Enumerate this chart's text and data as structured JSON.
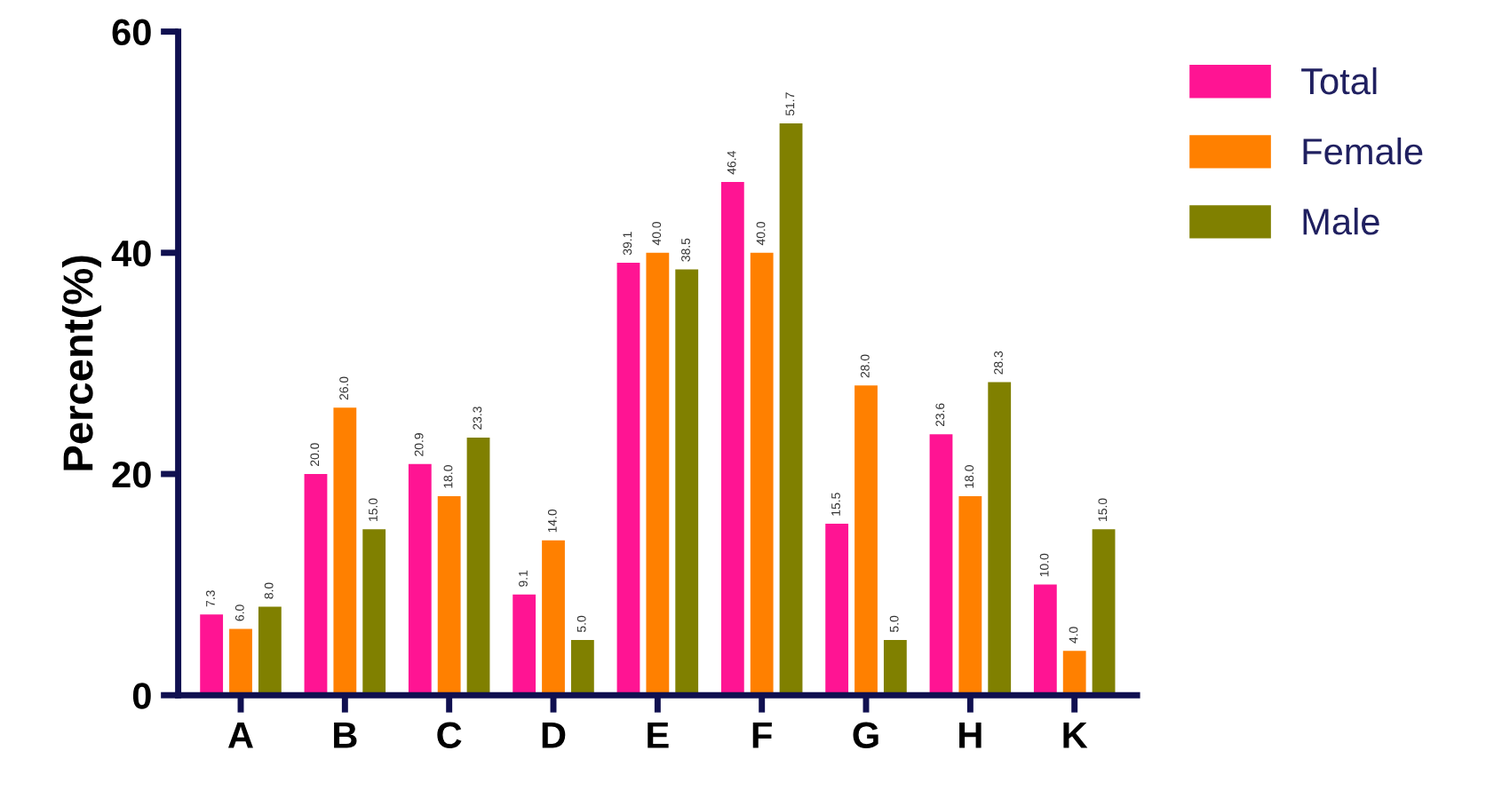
{
  "chart_data": {
    "type": "bar",
    "ylabel": "Percent(%)",
    "categories": [
      "A",
      "B",
      "C",
      "D",
      "E",
      "F",
      "G",
      "H",
      "K"
    ],
    "series": [
      {
        "name": "Total",
        "color": "#ff1493",
        "values": [
          7.3,
          20.0,
          20.9,
          9.1,
          39.1,
          46.4,
          15.5,
          23.6,
          10.0
        ],
        "value_labels": [
          "7.3",
          "20.0",
          "20.9",
          "9.1",
          "39.1",
          "46.4",
          "15.5",
          "23.6",
          "10.0"
        ]
      },
      {
        "name": "Female",
        "color": "#ff8000",
        "values": [
          6.0,
          26.0,
          18.0,
          14.0,
          40.0,
          40.0,
          28.0,
          18.0,
          4.0
        ],
        "value_labels": [
          "6.0",
          "26.0",
          "18.0",
          "14.0",
          "40.0",
          "40.0",
          "28.0",
          "18.0",
          "4.0"
        ]
      },
      {
        "name": "Male",
        "color": "#808000",
        "values": [
          8.0,
          15.0,
          23.3,
          5.0,
          38.5,
          51.7,
          5.0,
          28.3,
          15.0
        ],
        "value_labels": [
          "8.0",
          "15.0",
          "23.3",
          "5.0",
          "38.5",
          "51.7",
          "5.0",
          "28.3",
          "15.0"
        ]
      }
    ],
    "ylim": [
      0,
      60
    ],
    "yticks": [
      0,
      20,
      40,
      60
    ],
    "grid": false,
    "legend": "top right"
  }
}
